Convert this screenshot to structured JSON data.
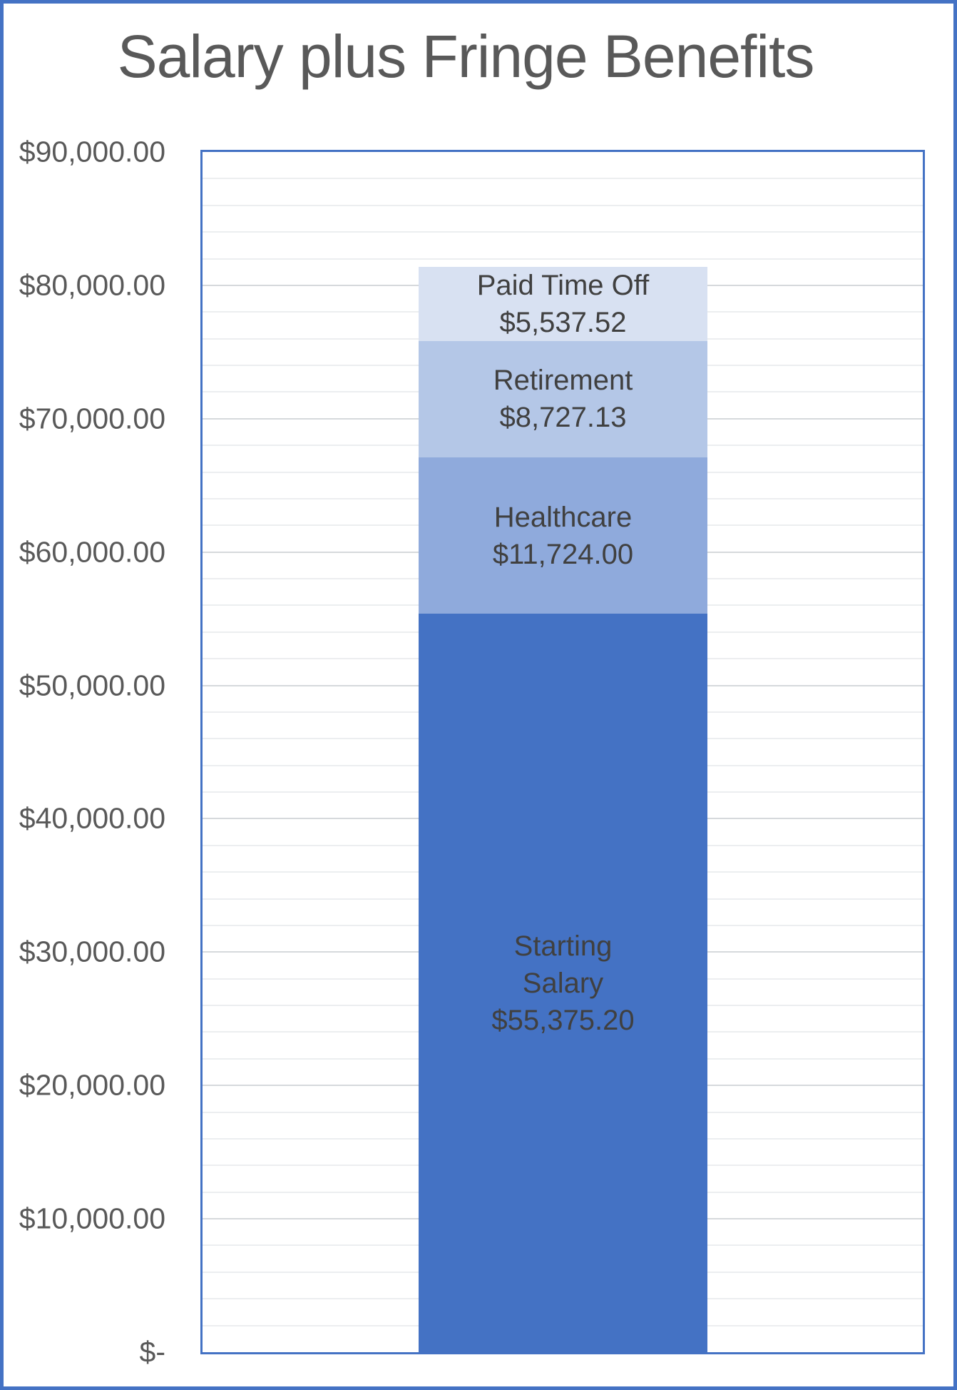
{
  "chart_data": {
    "type": "bar",
    "subtype": "stacked-column-single",
    "title": "Salary plus Fringe Benefits",
    "legend": "none",
    "grid": true,
    "series": [
      {
        "name": "Starting Salary",
        "name_lines": [
          "Starting",
          "Salary"
        ],
        "value": 55375.2,
        "value_label": "$55,375.20",
        "color": "#4472C4"
      },
      {
        "name": "Healthcare",
        "name_lines": [
          "Healthcare"
        ],
        "value": 11724.0,
        "value_label": "$11,724.00",
        "color": "#8FAADC"
      },
      {
        "name": "Retirement",
        "name_lines": [
          "Retirement"
        ],
        "value": 8727.13,
        "value_label": "$8,727.13",
        "color": "#B4C7E7"
      },
      {
        "name": "Paid Time Off",
        "name_lines": [
          "Paid Time Off"
        ],
        "value": 5537.52,
        "value_label": "$5,537.52",
        "color": "#D8E1F2"
      }
    ],
    "y_axis": {
      "min": 0,
      "max": 90000,
      "major_step": 10000,
      "minor_step": 2000,
      "format": "currency",
      "tick_labels": [
        "$90,000.00",
        "$80,000.00",
        "$70,000.00",
        "$60,000.00",
        "$50,000.00",
        "$40,000.00",
        "$30,000.00",
        "$20,000.00",
        "$10,000.00",
        "$-"
      ]
    },
    "style": {
      "outer_border_color": "#4472C4",
      "plot_border_color": "#4472C4",
      "title_color": "#595959",
      "axis_label_color": "#595959",
      "data_label_color": "#404040",
      "gridline_minor_color": "#ECEEF0",
      "gridline_major_color": "#D6D9DC",
      "background": "#FFFFFF"
    }
  }
}
